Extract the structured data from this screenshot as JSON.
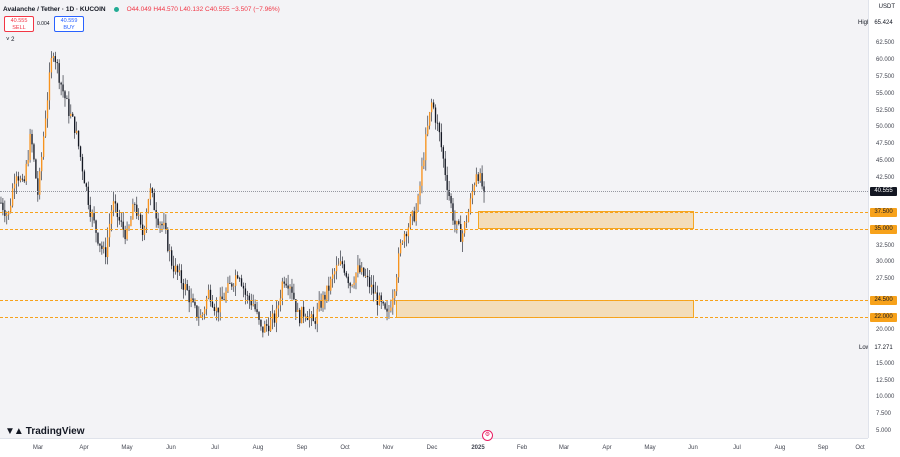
{
  "header": {
    "symbol": "Avalanche / Tether · 1D · KUCOIN",
    "ohlc": "O44.049 H44.570 L40.132 C40.555 −3.507 (−7.96%)"
  },
  "trade": {
    "sell_price": "40.555",
    "sell_label": "SELL",
    "spread": "0.004",
    "buy_price": "40.559",
    "buy_label": "BUY"
  },
  "indicators_toggle": "˅ 2",
  "currency": "USDT",
  "high": {
    "label": "High",
    "value": "65.424"
  },
  "low": {
    "label": "Low",
    "value": "17.271"
  },
  "price_labels": [
    "62.500",
    "60.000",
    "57.500",
    "55.000",
    "52.500",
    "50.000",
    "47.500",
    "45.000",
    "42.500",
    "32.500",
    "30.000",
    "27.500",
    "20.000",
    "15.000",
    "12.500",
    "10.000",
    "7.500",
    "5.000"
  ],
  "level_labels": [
    "37.500",
    "35.000",
    "24.500",
    "22.000"
  ],
  "current_price": "40.555",
  "time_labels": [
    "Mar",
    "Apr",
    "May",
    "Jun",
    "Jul",
    "Aug",
    "Sep",
    "Oct",
    "Nov",
    "Dec",
    "2025",
    "Feb",
    "Mar",
    "Apr",
    "May",
    "Jun",
    "Jul",
    "Aug",
    "Sep",
    "Oct"
  ],
  "logo": "TradingView",
  "colors": {
    "up": "#f7931e",
    "down": "#131722",
    "level": "#f7a21b",
    "current": "#131722"
  },
  "chart_data": {
    "type": "candlestick",
    "title": "Avalanche / Tether · 1D · KUCOIN",
    "ylim": [
      3.5,
      66.5
    ],
    "x": [
      "Mar",
      "Apr",
      "May",
      "Jun",
      "Jul",
      "Aug",
      "Sep",
      "Oct",
      "Nov",
      "Dec",
      "2025"
    ],
    "close_path": [
      39,
      37,
      44,
      41,
      49,
      40,
      52,
      62,
      57,
      53,
      50,
      44,
      38,
      34,
      31,
      39,
      36,
      34,
      39,
      34,
      41,
      37,
      35,
      30,
      28,
      26,
      23,
      22,
      26,
      23,
      25,
      27,
      29,
      25,
      24,
      20,
      21,
      22,
      28,
      27,
      22,
      23,
      21,
      24,
      26,
      29,
      30,
      27,
      29,
      28,
      26,
      24,
      22,
      27,
      34,
      36,
      38,
      47,
      54,
      49,
      42,
      36,
      34,
      38,
      44,
      40.555
    ],
    "levels": [
      37.5,
      35.0,
      24.5,
      22.0
    ],
    "zones": [
      {
        "from": 35.0,
        "to": 37.5
      },
      {
        "from": 22.0,
        "to": 24.5
      }
    ]
  }
}
